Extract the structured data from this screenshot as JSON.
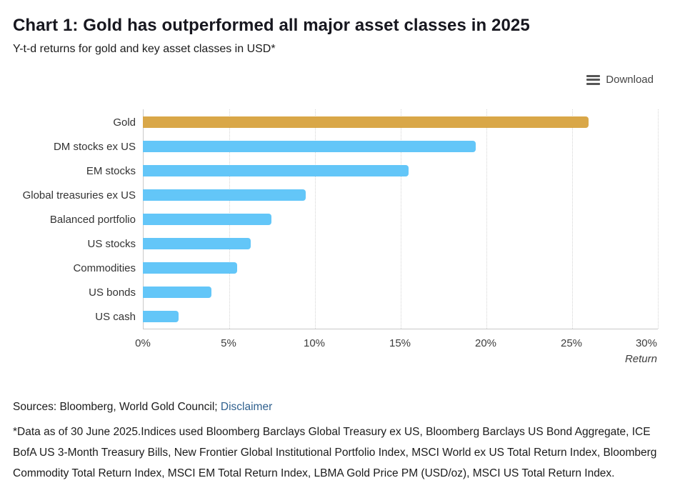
{
  "header": {
    "title": "Chart 1: Gold has outperformed all major asset classes in 2025",
    "subtitle": "Y-t-d returns for gold and key asset classes in USD*"
  },
  "toolbar": {
    "download_label": "Download",
    "menu_icon": "hamburger-icon"
  },
  "chart_data": {
    "type": "bar",
    "orientation": "horizontal",
    "title": "Chart 1: Gold has outperformed all major asset classes in 2025",
    "subtitle": "Y-t-d returns for gold and key asset classes in USD*",
    "categories": [
      "Gold",
      "DM stocks ex US",
      "EM stocks",
      "Global treasuries ex US",
      "Balanced portfolio",
      "US stocks",
      "Commodities",
      "US bonds",
      "US cash"
    ],
    "values": [
      26.0,
      19.4,
      15.5,
      9.5,
      7.5,
      6.3,
      5.5,
      4.0,
      2.1
    ],
    "bar_colors": [
      "#D9A748",
      "#63C6F8",
      "#63C6F8",
      "#63C6F8",
      "#63C6F8",
      "#63C6F8",
      "#63C6F8",
      "#63C6F8",
      "#63C6F8"
    ],
    "xlabel": "Return",
    "ylabel": "",
    "x_ticks": [
      "0%",
      "5%",
      "10%",
      "15%",
      "20%",
      "25%",
      "30%"
    ],
    "xlim": [
      0,
      30
    ],
    "grid": "vertical-dotted",
    "legend": "none"
  },
  "footer": {
    "sources_text": "Sources: Bloomberg, World Gold Council;",
    "disclaimer_link": "Disclaimer",
    "note": "*Data as of 30 June 2025.Indices used Bloomberg Barclays Global Treasury ex US, Bloomberg Barclays US Bond Aggregate, ICE BofA US 3-Month Treasury Bills, New Frontier Global Institutional Portfolio Index, MSCI World ex US Total Return Index, Bloomberg Commodity Total Return Index, MSCI EM Total Return Index, LBMA Gold Price PM (USD/oz), MSCI US Total Return Index."
  },
  "colors": {
    "gold": "#D9A748",
    "blue": "#63C6F8",
    "link": "#30618F",
    "axis_line": "#C9C9C9",
    "gridline": "#D4D4D4",
    "title_text": "#17171F"
  }
}
